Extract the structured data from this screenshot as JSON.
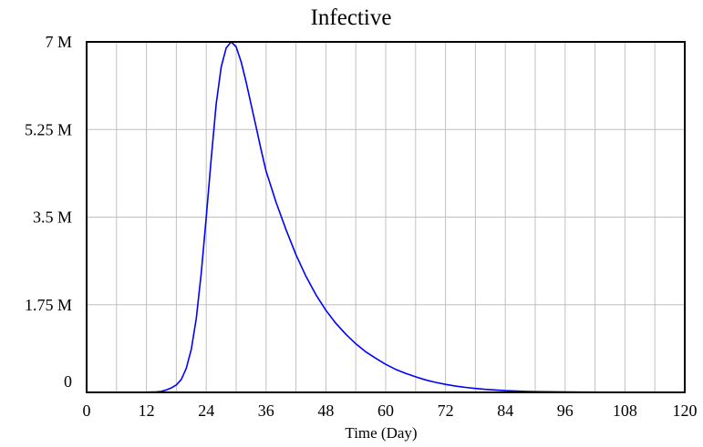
{
  "chart_data": {
    "type": "line",
    "title": "Infective",
    "xlabel": "Time (Day)",
    "ylabel": "",
    "xlim": [
      0,
      120
    ],
    "ylim": [
      0,
      7000000
    ],
    "x_ticks": [
      0,
      12,
      24,
      36,
      48,
      60,
      72,
      84,
      96,
      108,
      120
    ],
    "x_tick_labels": [
      "0",
      "12",
      "24",
      "36",
      "48",
      "60",
      "72",
      "84",
      "96",
      "108",
      "120"
    ],
    "y_ticks": [
      0,
      1750000,
      3500000,
      5250000,
      7000000
    ],
    "y_tick_labels": [
      "0",
      "1.75 M",
      "3.5 M",
      "5.25 M",
      "7 M"
    ],
    "x_gridlines": [
      0,
      6,
      12,
      18,
      24,
      30,
      36,
      42,
      48,
      54,
      60,
      66,
      72,
      78,
      84,
      90,
      96,
      102,
      108,
      114,
      120
    ],
    "y_gridlines": [
      0,
      1750000,
      3500000,
      5250000,
      7000000
    ],
    "grid": true,
    "colors": {
      "series": "#0000ff",
      "grid": "#c0c0c0",
      "frame": "#000000"
    },
    "series": [
      {
        "x": [
          0,
          10,
          14,
          15,
          16,
          17,
          18,
          19,
          20,
          21,
          22,
          23,
          24,
          25,
          26,
          27,
          28,
          29,
          30,
          31,
          32,
          33,
          34,
          35,
          36,
          38,
          40,
          42,
          44,
          46,
          48,
          50,
          52,
          54,
          56,
          58,
          60,
          62,
          64,
          66,
          68,
          70,
          72,
          74,
          76,
          78,
          80,
          84,
          88,
          90,
          100,
          110,
          120
        ],
        "y": [
          0,
          0,
          10000,
          20000,
          50000,
          90000,
          150000,
          260000,
          480000,
          860000,
          1480000,
          2380000,
          3500000,
          4680000,
          5760000,
          6500000,
          6880000,
          7000000,
          6900000,
          6600000,
          6200000,
          5750000,
          5300000,
          4850000,
          4420000,
          3800000,
          3250000,
          2750000,
          2320000,
          1950000,
          1640000,
          1380000,
          1160000,
          970000,
          810000,
          680000,
          560000,
          460000,
          380000,
          310000,
          250000,
          200000,
          160000,
          125000,
          100000,
          78000,
          60000,
          35000,
          20000,
          14000,
          5000,
          1500,
          500
        ]
      }
    ]
  }
}
